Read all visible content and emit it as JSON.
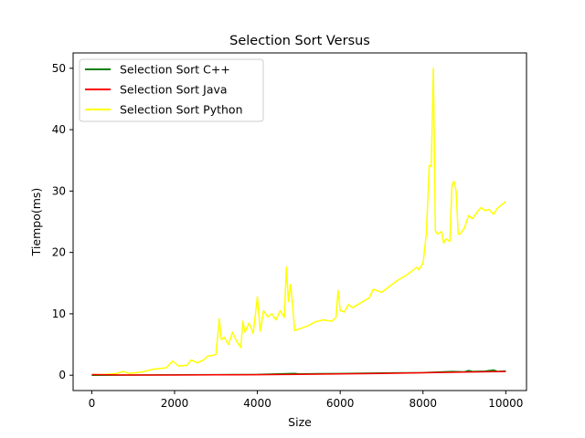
{
  "chart_data": {
    "type": "line",
    "title": "Selection Sort Versus",
    "xlabel": "Size",
    "ylabel": "Tiempo(ms)",
    "xlim": [
      -450,
      10500
    ],
    "ylim": [
      -2.5,
      52.5
    ],
    "xticks": [
      0,
      2000,
      4000,
      6000,
      8000,
      10000
    ],
    "xtick_labels": [
      "0",
      "2000",
      "4000",
      "6000",
      "8000",
      "10000"
    ],
    "yticks": [
      0,
      10,
      20,
      30,
      40,
      50
    ],
    "ytick_labels": [
      "0",
      "10",
      "20",
      "30",
      "40",
      "50"
    ],
    "grid": false,
    "legend_position": "upper-left",
    "series": [
      {
        "name": "Selection Sort C++",
        "color": "#008000",
        "x": [
          0,
          1000,
          2000,
          3000,
          4000,
          4900,
          5000,
          5500,
          6000,
          7000,
          8000,
          8700,
          9000,
          9100,
          9200,
          9500,
          9700,
          9800,
          10000
        ],
        "y": [
          0.0,
          0.03,
          0.05,
          0.08,
          0.12,
          0.3,
          0.2,
          0.25,
          0.27,
          0.35,
          0.42,
          0.6,
          0.55,
          0.75,
          0.6,
          0.65,
          0.85,
          0.6,
          0.7
        ]
      },
      {
        "name": "Selection Sort Java",
        "color": "#ff0000",
        "x": [
          0,
          500,
          1000,
          2000,
          3000,
          4000,
          5000,
          6000,
          7000,
          8000,
          9000,
          10000
        ],
        "y": [
          0.1,
          0.05,
          0.03,
          0.02,
          0.05,
          0.08,
          0.15,
          0.22,
          0.3,
          0.4,
          0.5,
          0.6
        ]
      },
      {
        "name": "Selection Sort Python",
        "color": "#ffff00",
        "x": [
          0,
          300,
          600,
          750,
          900,
          1200,
          1500,
          1800,
          1950,
          2100,
          2300,
          2400,
          2550,
          2700,
          2800,
          2900,
          3000,
          3080,
          3130,
          3200,
          3300,
          3400,
          3500,
          3600,
          3650,
          3700,
          3800,
          3900,
          4000,
          4070,
          4150,
          4250,
          4350,
          4450,
          4550,
          4650,
          4700,
          4750,
          4800,
          4850,
          4900,
          5000,
          5200,
          5400,
          5600,
          5800,
          5900,
          5950,
          6000,
          6100,
          6200,
          6300,
          6500,
          6700,
          6800,
          7000,
          7200,
          7400,
          7600,
          7800,
          7850,
          7900,
          8000,
          8080,
          8150,
          8200,
          8250,
          8300,
          8350,
          8450,
          8500,
          8550,
          8650,
          8700,
          8750,
          8800,
          8850,
          8900,
          9000,
          9100,
          9200,
          9300,
          9400,
          9500,
          9600,
          9700,
          9800,
          10000
        ],
        "y": [
          0.1,
          0.1,
          0.3,
          0.6,
          0.3,
          0.5,
          1.0,
          1.2,
          2.3,
          1.5,
          1.6,
          2.5,
          2.0,
          2.5,
          3.1,
          3.2,
          3.4,
          9.2,
          5.8,
          6.2,
          5.0,
          7.0,
          5.5,
          4.5,
          8.8,
          7.0,
          8.5,
          6.8,
          12.8,
          7.2,
          10.5,
          9.5,
          10.0,
          9.0,
          10.5,
          9.4,
          17.6,
          12.0,
          14.8,
          11.5,
          7.3,
          7.5,
          8.0,
          8.7,
          9.0,
          8.8,
          9.4,
          13.8,
          10.5,
          10.3,
          11.5,
          11.0,
          11.8,
          12.6,
          14.0,
          13.5,
          14.5,
          15.5,
          16.3,
          17.3,
          17.6,
          17.2,
          18.2,
          23.0,
          34.2,
          34.0,
          50.0,
          23.5,
          23.0,
          23.4,
          21.5,
          22.2,
          21.8,
          31.0,
          31.6,
          30.0,
          23.0,
          23.0,
          24.0,
          26.0,
          25.5,
          26.5,
          27.3,
          26.8,
          27.0,
          26.2,
          27.2,
          28.3
        ]
      }
    ]
  }
}
